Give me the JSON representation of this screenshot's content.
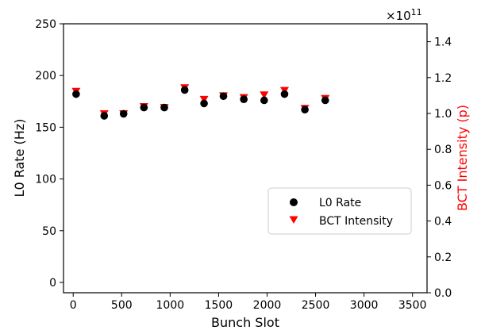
{
  "chart_data": {
    "type": "scatter",
    "xlabel": "Bunch Slot",
    "ylabel_left": "L0 Rate (Hz)",
    "ylabel_right": "BCT Intensity (p)",
    "right_axis_exponent": "×10",
    "right_axis_exponent_power": "11",
    "xlim": [
      -100,
      3650
    ],
    "ylim_left": [
      -10,
      250
    ],
    "ylim_right": [
      0.0,
      1.5
    ],
    "x_ticks": [
      0,
      500,
      1000,
      1500,
      2000,
      2500,
      3000,
      3500
    ],
    "x_tick_labels": [
      "0",
      "500",
      "1000",
      "1500",
      "2000",
      "2500",
      "3000",
      "3500"
    ],
    "y_left_ticks": [
      0,
      50,
      100,
      150,
      200,
      250
    ],
    "y_left_tick_labels": [
      "0",
      "50",
      "100",
      "150",
      "200",
      "250"
    ],
    "y_right_ticks": [
      0.0,
      0.2,
      0.4,
      0.6,
      0.8,
      1.0,
      1.2,
      1.4
    ],
    "y_right_tick_labels": [
      "0.0",
      "0.2",
      "0.4",
      "0.6",
      "0.8",
      "1.0",
      "1.2",
      "1.4"
    ],
    "grid": false,
    "legend_position": "lower-right",
    "series": [
      {
        "name": "L0 Rate",
        "marker": "circle",
        "color": "#000000",
        "axis": "left",
        "x": [
          30,
          320,
          520,
          730,
          940,
          1150,
          1350,
          1550,
          1760,
          1970,
          2180,
          2390,
          2600
        ],
        "y": [
          182,
          161,
          163,
          169,
          169,
          186,
          173,
          180,
          177,
          176,
          182,
          167,
          176
        ]
      },
      {
        "name": "BCT Intensity",
        "marker": "triangle-down",
        "color": "#ff0000",
        "axis": "right",
        "x": [
          30,
          320,
          520,
          730,
          940,
          1150,
          1350,
          1550,
          1760,
          1970,
          2180,
          2390,
          2600
        ],
        "y": [
          1.125,
          1.0,
          1.0,
          1.04,
          1.035,
          1.145,
          1.08,
          1.1,
          1.09,
          1.105,
          1.13,
          1.03,
          1.085
        ]
      }
    ]
  },
  "colors": {
    "axis": "#000000",
    "right_axis_label": "#ff0000",
    "legend_border": "#cccccc"
  }
}
